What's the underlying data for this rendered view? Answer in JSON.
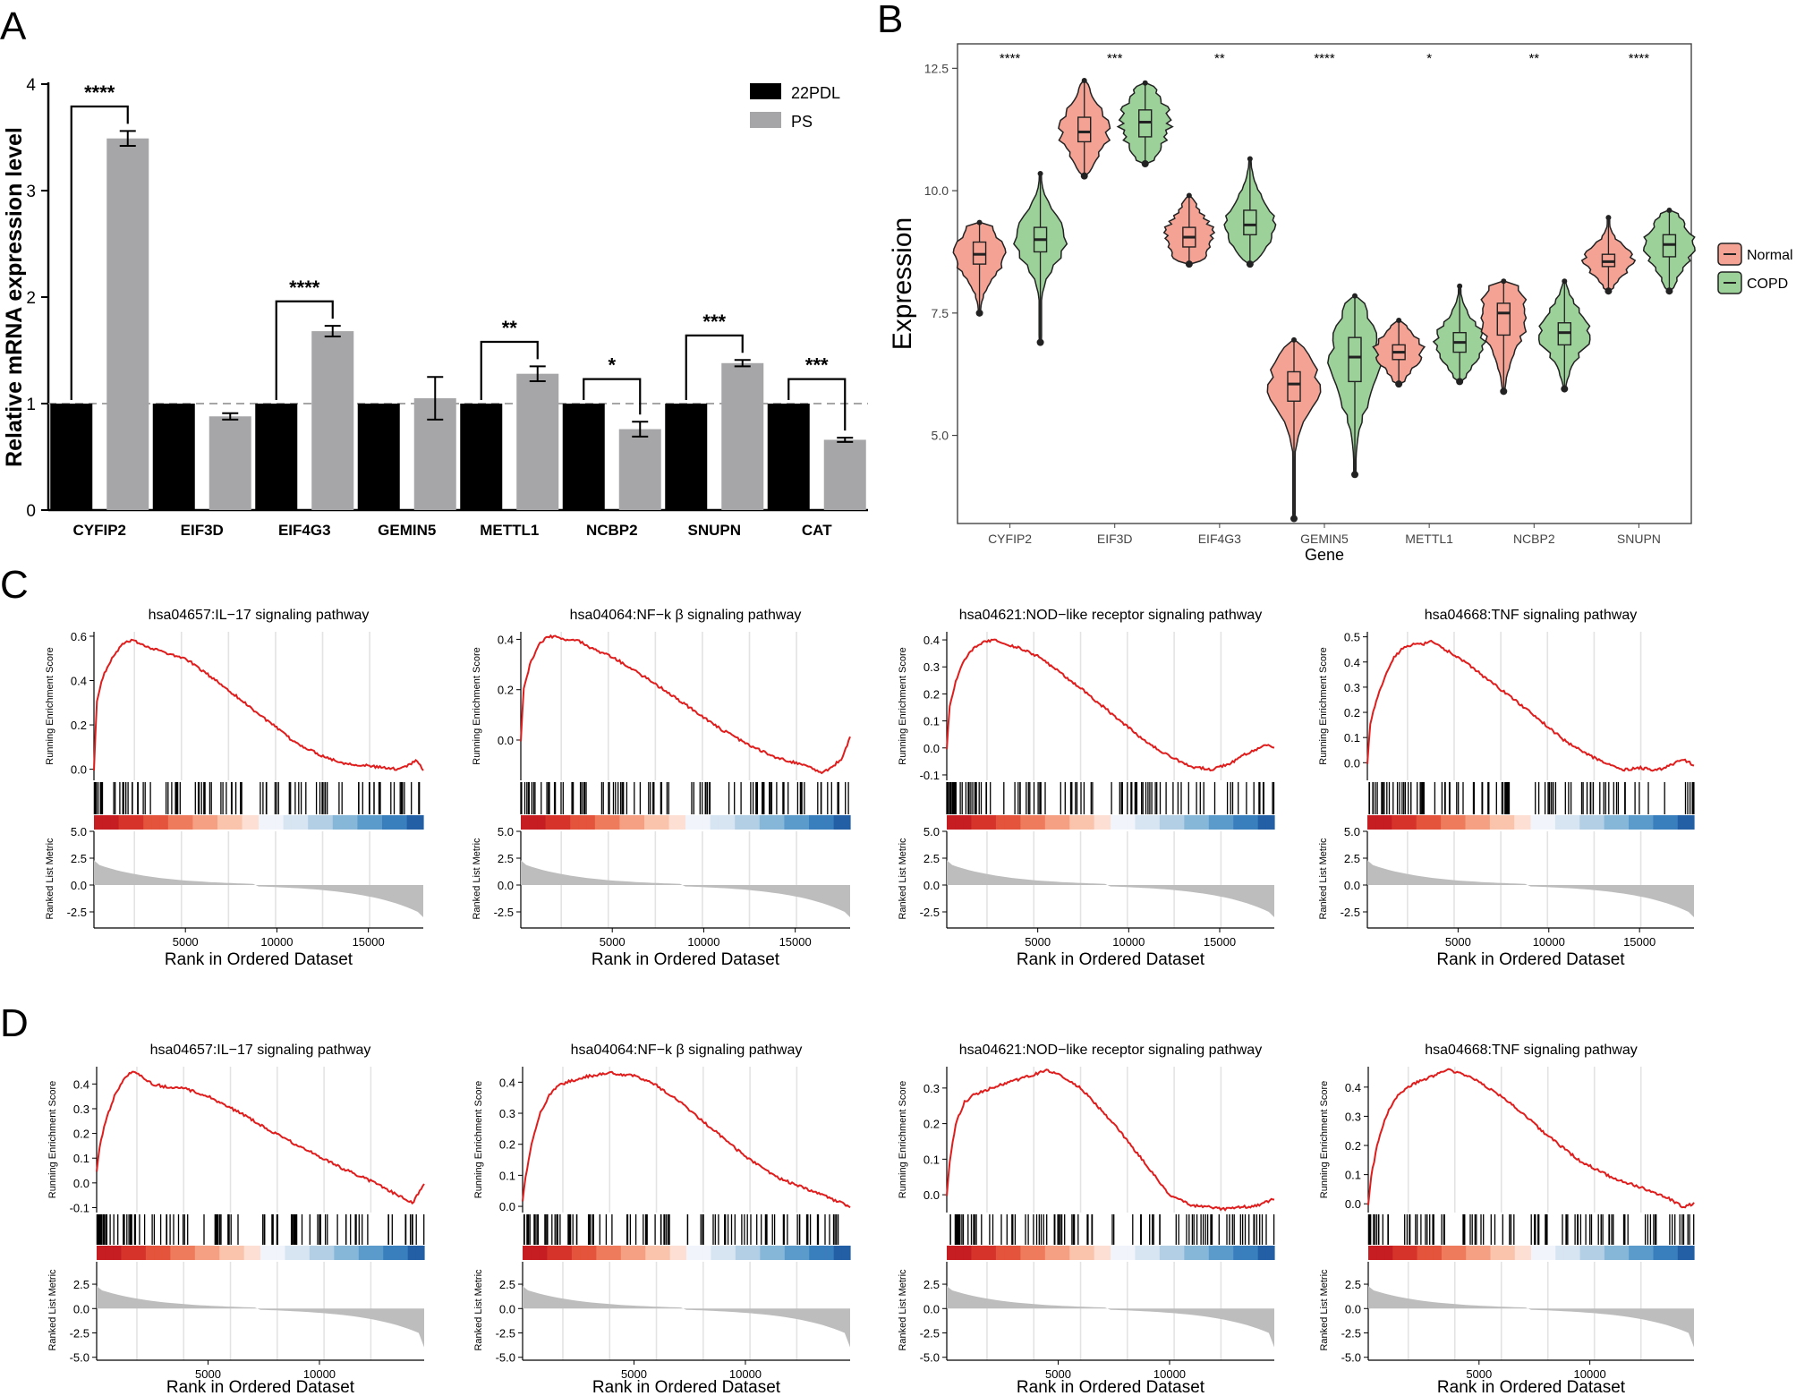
{
  "panels": {
    "A": "A",
    "B": "B",
    "C": "C",
    "D": "D"
  },
  "colors": {
    "bar_22pdl": "#000000",
    "bar_ps": "#a6a6a8",
    "normal": "#f4a294",
    "copd": "#9dd19a",
    "es_line": "#e01d1d",
    "metric_fill": "#bdbdbd",
    "grid": "#e3e3e3"
  },
  "chart_data": [
    {
      "id": "A",
      "type": "bar",
      "ylabel": "Relative mRNA expression level",
      "ylim": [
        0,
        4
      ],
      "yticks": [
        "0",
        "1",
        "2",
        "3",
        "4"
      ],
      "reference_line": 1,
      "categories": [
        "CYFIP2",
        "EIF3D",
        "EIF4G3",
        "GEMIN5",
        "METTL1",
        "NCBP2",
        "SNUPN",
        "CAT"
      ],
      "series": [
        {
          "name": "22PDL",
          "values": [
            1,
            1,
            1,
            1,
            1,
            1,
            1,
            1
          ],
          "errors": [
            0,
            0,
            0,
            0,
            0,
            0,
            0,
            0
          ]
        },
        {
          "name": "PS",
          "values": [
            3.49,
            0.88,
            1.68,
            1.05,
            1.28,
            0.76,
            1.38,
            0.66
          ],
          "errors": [
            0.07,
            0.03,
            0.05,
            0.2,
            0.07,
            0.07,
            0.03,
            0.02
          ]
        }
      ],
      "significance": [
        "****",
        "",
        "****",
        "",
        "**",
        "*",
        "***",
        "***"
      ]
    },
    {
      "id": "B",
      "type": "violin",
      "xlabel": "Gene",
      "ylabel": "Expression",
      "ylim": [
        3.2,
        13.0
      ],
      "yticks": [
        "5.0",
        "7.5",
        "10.0",
        "12.5"
      ],
      "categories": [
        "CYFIP2",
        "EIF3D",
        "EIF4G3",
        "GEMIN5",
        "METTL1",
        "NCBP2",
        "SNUPN"
      ],
      "legend": [
        "Normal",
        "COPD"
      ],
      "significance": [
        "****",
        "***",
        "**",
        "****",
        "*",
        "**",
        "****"
      ],
      "groups": [
        {
          "gene": "CYFIP2",
          "normal": {
            "min": 7.5,
            "q1": 8.5,
            "med": 8.7,
            "q3": 8.95,
            "max": 9.35
          },
          "copd": {
            "min": 6.9,
            "q1": 8.75,
            "med": 9.0,
            "q3": 9.25,
            "max": 10.35
          }
        },
        {
          "gene": "EIF3D",
          "normal": {
            "min": 10.3,
            "q1": 11.0,
            "med": 11.2,
            "q3": 11.5,
            "max": 12.25
          },
          "copd": {
            "min": 10.55,
            "q1": 11.1,
            "med": 11.4,
            "q3": 11.65,
            "max": 12.2
          }
        },
        {
          "gene": "EIF4G3",
          "normal": {
            "min": 8.5,
            "q1": 8.85,
            "med": 9.05,
            "q3": 9.25,
            "max": 9.9
          },
          "copd": {
            "min": 8.5,
            "q1": 9.1,
            "med": 9.3,
            "q3": 9.6,
            "max": 10.65
          }
        },
        {
          "gene": "GEMIN5",
          "normal": {
            "min": 3.3,
            "q1": 5.7,
            "med": 6.05,
            "q3": 6.3,
            "max": 6.95
          },
          "copd": {
            "min": 4.2,
            "q1": 6.1,
            "med": 6.6,
            "q3": 7.0,
            "max": 7.85
          }
        },
        {
          "gene": "METTL1",
          "normal": {
            "min": 6.05,
            "q1": 6.55,
            "med": 6.7,
            "q3": 6.85,
            "max": 7.35
          },
          "copd": {
            "min": 6.1,
            "q1": 6.7,
            "med": 6.9,
            "q3": 7.1,
            "max": 8.05
          }
        },
        {
          "gene": "NCBP2",
          "normal": {
            "min": 5.9,
            "q1": 7.05,
            "med": 7.5,
            "q3": 7.7,
            "max": 8.15
          },
          "copd": {
            "min": 5.95,
            "q1": 6.85,
            "med": 7.1,
            "q3": 7.3,
            "max": 8.15
          }
        },
        {
          "gene": "SNUPN",
          "normal": {
            "min": 7.95,
            "q1": 8.45,
            "med": 8.55,
            "q3": 8.7,
            "max": 9.45
          },
          "copd": {
            "min": 7.95,
            "q1": 8.65,
            "med": 8.9,
            "q3": 9.1,
            "max": 9.6
          }
        }
      ]
    },
    {
      "id": "C",
      "type": "line",
      "xlabel": "Rank in Ordered Dataset",
      "ylabel_es": "Running Enrichment Score",
      "ylabel_metric": "Ranked List Metric",
      "xlim": [
        1,
        18000
      ],
      "xticks": [
        "5000",
        "10000",
        "15000"
      ],
      "metric_ylim": [
        -4.0,
        5.0
      ],
      "metric_yticks": [
        "5.0",
        "2.5",
        "0.0",
        "-2.5"
      ],
      "plots": [
        {
          "title": "hsa04657:IL−17 signaling pathway",
          "ylim": [
            -0.05,
            0.62
          ],
          "yticks": [
            "0.6",
            "0.4",
            "0.2",
            "0.0"
          ],
          "es_x": [
            0,
            150,
            500,
            1000,
            1500,
            2000,
            2500,
            3000,
            3500,
            4000,
            5000,
            7000,
            9000,
            11000,
            12500,
            13500,
            14500,
            15500,
            16500,
            17200,
            17600,
            18000
          ],
          "es_y": [
            0.0,
            0.3,
            0.42,
            0.5,
            0.56,
            0.58,
            0.57,
            0.55,
            0.54,
            0.52,
            0.5,
            0.38,
            0.25,
            0.12,
            0.06,
            0.03,
            0.02,
            0.01,
            0.0,
            0.02,
            0.04,
            0.0
          ]
        },
        {
          "title": "hsa04064:NF−k β signaling pathway",
          "ylim": [
            -0.16,
            0.43
          ],
          "yticks": [
            "0.4",
            "0.2",
            "0.0"
          ],
          "es_x": [
            0,
            150,
            500,
            1000,
            1500,
            2000,
            2500,
            3000,
            3500,
            4000,
            5000,
            7000,
            9000,
            11000,
            12500,
            14000,
            15500,
            16500,
            17500,
            18000
          ],
          "es_y": [
            0.0,
            0.2,
            0.3,
            0.38,
            0.41,
            0.41,
            0.4,
            0.4,
            0.38,
            0.36,
            0.33,
            0.24,
            0.14,
            0.04,
            -0.02,
            -0.07,
            -0.1,
            -0.13,
            -0.08,
            0.01
          ]
        },
        {
          "title": "hsa04621:NOD−like receptor signaling pathway",
          "ylim": [
            -0.12,
            0.43
          ],
          "yticks": [
            "0.4",
            "0.3",
            "0.2",
            "0.1",
            "0.0",
            "-0.1"
          ],
          "es_x": [
            0,
            150,
            500,
            1000,
            1500,
            2000,
            2500,
            3000,
            3500,
            4000,
            5000,
            7000,
            9000,
            11000,
            12500,
            13500,
            14500,
            15500,
            16500,
            17500,
            18000
          ],
          "es_y": [
            0.0,
            0.15,
            0.25,
            0.33,
            0.37,
            0.39,
            0.4,
            0.39,
            0.38,
            0.37,
            0.34,
            0.24,
            0.13,
            0.02,
            -0.04,
            -0.07,
            -0.08,
            -0.06,
            -0.02,
            0.01,
            0.0
          ]
        },
        {
          "title": "hsa04668:TNF signaling pathway",
          "ylim": [
            -0.07,
            0.52
          ],
          "yticks": [
            "0.5",
            "0.4",
            "0.3",
            "0.2",
            "0.1",
            "0.0"
          ],
          "es_x": [
            0,
            150,
            500,
            1000,
            1500,
            2000,
            2500,
            3000,
            3500,
            4000,
            5000,
            7000,
            9000,
            11000,
            12500,
            14000,
            15000,
            16000,
            17000,
            17500,
            18000
          ],
          "es_y": [
            0.0,
            0.15,
            0.25,
            0.35,
            0.42,
            0.46,
            0.47,
            0.47,
            0.48,
            0.46,
            0.42,
            0.31,
            0.2,
            0.08,
            0.02,
            -0.03,
            -0.02,
            -0.03,
            0.0,
            0.01,
            -0.01
          ]
        }
      ]
    },
    {
      "id": "D",
      "type": "line",
      "xlabel": "Rank in Ordered Dataset",
      "ylabel_es": "Running Enrichment Score",
      "ylabel_metric": "Ranked List Metric",
      "xlim": [
        1,
        14700
      ],
      "xticks": [
        "5000",
        "10000"
      ],
      "metric_ylim": [
        -5.3,
        4.8
      ],
      "metric_yticks": [
        "2.5",
        "0.0",
        "-2.5",
        "-5.0"
      ],
      "plots": [
        {
          "title": "hsa04657:IL−17 signaling pathway",
          "ylim": [
            -0.12,
            0.47
          ],
          "yticks": [
            "0.4",
            "0.3",
            "0.2",
            "0.1",
            "0.0",
            "-0.1"
          ],
          "es_x": [
            0,
            150,
            400,
            800,
            1200,
            1600,
            2000,
            2500,
            3000,
            4000,
            5000,
            6500,
            8000,
            9500,
            11000,
            12500,
            13500,
            14200,
            14700
          ],
          "es_y": [
            0.05,
            0.15,
            0.25,
            0.35,
            0.42,
            0.45,
            0.43,
            0.4,
            0.39,
            0.38,
            0.35,
            0.28,
            0.2,
            0.13,
            0.06,
            0.0,
            -0.05,
            -0.08,
            0.0
          ]
        },
        {
          "title": "hsa04064:NF−k β signaling pathway",
          "ylim": [
            -0.02,
            0.45
          ],
          "yticks": [
            "0.4",
            "0.3",
            "0.2",
            "0.1",
            "0.0"
          ],
          "es_x": [
            0,
            150,
            400,
            800,
            1200,
            1600,
            2000,
            3000,
            4000,
            5000,
            6000,
            7000,
            8500,
            10000,
            11500,
            13000,
            14000,
            14700
          ],
          "es_y": [
            0.02,
            0.1,
            0.2,
            0.3,
            0.36,
            0.39,
            0.4,
            0.42,
            0.43,
            0.42,
            0.39,
            0.34,
            0.25,
            0.16,
            0.09,
            0.05,
            0.02,
            0.0
          ]
        },
        {
          "title": "hsa04621:NOD−like receptor signaling pathway",
          "ylim": [
            -0.05,
            0.36
          ],
          "yticks": [
            "0.3",
            "0.2",
            "0.1",
            "0.0"
          ],
          "es_x": [
            0,
            150,
            400,
            800,
            1200,
            1600,
            2000,
            3000,
            4000,
            4500,
            5000,
            6000,
            7500,
            9000,
            10000,
            11000,
            12500,
            14000,
            14700
          ],
          "es_y": [
            0.0,
            0.1,
            0.2,
            0.26,
            0.28,
            0.29,
            0.3,
            0.32,
            0.34,
            0.35,
            0.34,
            0.3,
            0.2,
            0.08,
            0.0,
            -0.03,
            -0.04,
            -0.03,
            -0.01
          ]
        },
        {
          "title": "hsa04668:TNF signaling pathway",
          "ylim": [
            -0.03,
            0.47
          ],
          "yticks": [
            "0.4",
            "0.3",
            "0.2",
            "0.1",
            "0.0"
          ],
          "es_x": [
            0,
            150,
            400,
            800,
            1200,
            1600,
            2000,
            3000,
            3500,
            4000,
            5000,
            6500,
            8000,
            9500,
            11000,
            12500,
            13500,
            14200,
            14700
          ],
          "es_y": [
            0.0,
            0.1,
            0.2,
            0.3,
            0.36,
            0.39,
            0.41,
            0.44,
            0.46,
            0.45,
            0.42,
            0.34,
            0.24,
            0.15,
            0.09,
            0.05,
            0.02,
            -0.01,
            0.0
          ]
        }
      ]
    }
  ]
}
